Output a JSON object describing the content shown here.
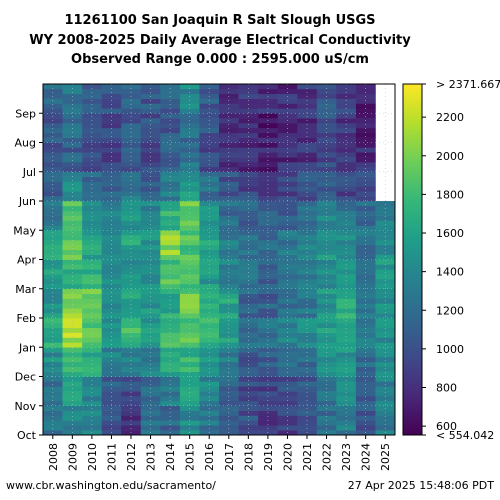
{
  "chart_data": {
    "type": "heatmap",
    "title_lines": [
      "11261100 San Joaquin R Salt Slough USGS",
      "WY 2008-2025 Daily Average Electrical Conductivity",
      "Observed Range 0.000 : 2595.000 uS/cm"
    ],
    "x_labels": [
      "2008",
      "2009",
      "2010",
      "2011",
      "2012",
      "2013",
      "2014",
      "2015",
      "2016",
      "2017",
      "2018",
      "2019",
      "2020",
      "2021",
      "2022",
      "2023",
      "2024",
      "2025"
    ],
    "y_labels": [
      "Oct",
      "Nov",
      "Dec",
      "Jan",
      "Feb",
      "Mar",
      "Apr",
      "May",
      "Jun",
      "Jul",
      "Aug",
      "Sep"
    ],
    "colorbar": {
      "ticks": [
        600,
        800,
        1000,
        1200,
        1400,
        1600,
        1800,
        2000,
        2200
      ],
      "tick_labels": [
        "600",
        "800",
        "1000",
        "1200",
        "1400",
        "1600",
        "1800",
        "2000",
        "2200"
      ],
      "max_label": "> 2371.667",
      "min_label": "< 554.042",
      "vmin": 554.042,
      "vmax": 2371.667,
      "colormap": "viridis"
    },
    "grid": true,
    "monthly_ec_estimate": [
      [
        1250,
        1200,
        1450,
        1650,
        1500,
        1550,
        1650,
        1300,
        1100,
        1000,
        1050,
        1150
      ],
      [
        1400,
        1550,
        1750,
        2150,
        2050,
        1700,
        1900,
        1850,
        1400,
        1100,
        1200,
        1250
      ],
      [
        1350,
        1400,
        1650,
        1850,
        2000,
        1700,
        1600,
        1450,
        1200,
        950,
        1000,
        1100
      ],
      [
        1050,
        1100,
        1350,
        1500,
        1450,
        1450,
        1450,
        1350,
        1150,
        900,
        950,
        1000
      ],
      [
        800,
        950,
        1400,
        1800,
        1600,
        1500,
        1600,
        1500,
        1300,
        1050,
        1050,
        1100
      ],
      [
        1250,
        1200,
        1350,
        1550,
        1500,
        1400,
        1450,
        1350,
        1100,
        950,
        1000,
        1050
      ],
      [
        1150,
        1300,
        1600,
        1750,
        1650,
        1850,
        2050,
        1700,
        1300,
        1100,
        1050,
        1100
      ],
      [
        1400,
        1550,
        1700,
        1850,
        1950,
        1800,
        1850,
        1950,
        1500,
        1250,
        1200,
        1400
      ],
      [
        1250,
        1400,
        1500,
        1750,
        1750,
        1550,
        1600,
        1500,
        1200,
        950,
        1000,
        1050
      ],
      [
        1100,
        1150,
        1300,
        1550,
        1600,
        1400,
        1300,
        1200,
        1000,
        800,
        750,
        850
      ],
      [
        1000,
        950,
        1050,
        1250,
        1150,
        1200,
        1250,
        1100,
        950,
        800,
        800,
        850
      ],
      [
        850,
        900,
        1050,
        1250,
        1100,
        1100,
        1150,
        1050,
        900,
        750,
        700,
        800
      ],
      [
        900,
        950,
        1150,
        1350,
        1250,
        1250,
        1250,
        1100,
        900,
        800,
        750,
        800
      ],
      [
        1000,
        1050,
        1200,
        1450,
        1300,
        1300,
        1350,
        1250,
        1000,
        850,
        800,
        850
      ],
      [
        1200,
        1250,
        1450,
        1550,
        1500,
        1450,
        1500,
        1350,
        1100,
        950,
        1000,
        1050
      ],
      [
        1300,
        1400,
        1500,
        1650,
        1700,
        1600,
        1450,
        1250,
        950,
        850,
        850,
        900
      ],
      [
        1050,
        1100,
        1200,
        1350,
        1300,
        1250,
        1250,
        1150,
        950,
        800,
        700,
        750
      ],
      [
        1300,
        1350,
        1400,
        1450,
        1450,
        1500,
        1450,
        1400,
        null,
        null,
        null,
        null
      ]
    ]
  },
  "footer": {
    "left": "www.cbr.washington.edu/sacramento/",
    "right": "27 Apr 2025 15:48:06 PDT"
  }
}
